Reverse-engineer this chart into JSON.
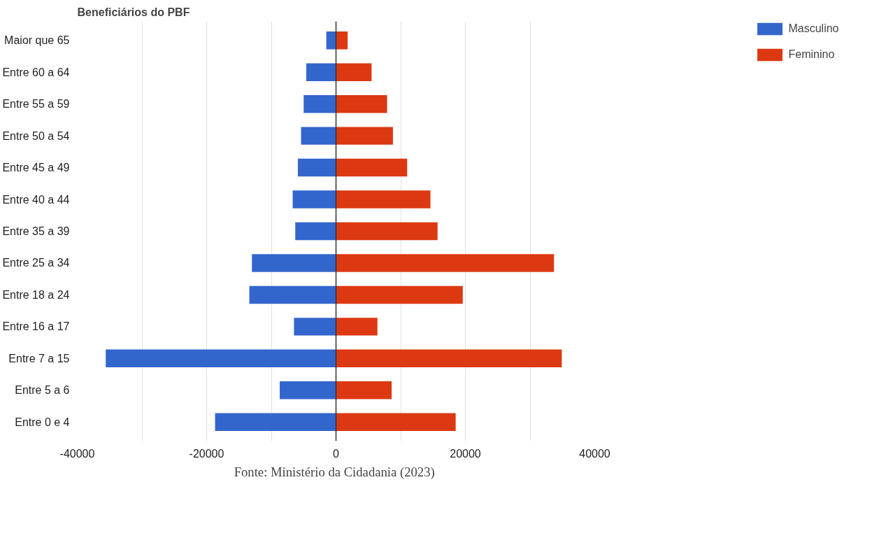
{
  "chart_data": {
    "type": "bar",
    "orientation": "horizontal",
    "stacked": true,
    "title": "Beneficiários do PBF",
    "categories": [
      "Maior que 65",
      "Entre 60 a 64",
      "Entre 55 a 59",
      "Entre 50 a 54",
      "Entre 45 a 49",
      "Entre 40 a 44",
      "Entre 35 a 39",
      "Entre 25 a 34",
      "Entre 18 a 24",
      "Entre 16 a 17",
      "Entre 7 a 15",
      "Entre 5 a 6",
      "Entre 0 e 4"
    ],
    "series": [
      {
        "name": "Masculino",
        "color": "#3366cc",
        "values": [
          -1500,
          -4600,
          -5000,
          -5400,
          -5900,
          -6700,
          -6300,
          -13000,
          -13400,
          -6500,
          -35600,
          -8700,
          -18700
        ]
      },
      {
        "name": "Feminino",
        "color": "#dc3912",
        "values": [
          1800,
          5500,
          7900,
          8800,
          11000,
          14600,
          15700,
          33700,
          19600,
          6400,
          34900,
          8600,
          18500
        ]
      }
    ],
    "xlim": [
      -40000,
      40000
    ],
    "xticks": [
      -40000,
      -20000,
      0,
      20000,
      40000
    ],
    "grid": "x",
    "legend": "top right",
    "annotations": [
      "Fonte: Ministério da Cidadania  (2023)"
    ]
  }
}
